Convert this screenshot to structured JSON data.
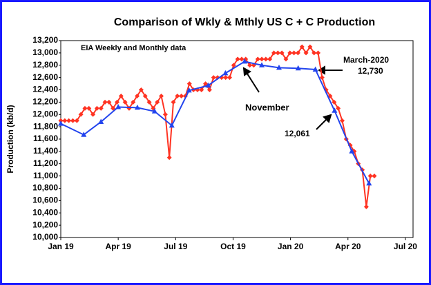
{
  "chart_data": {
    "type": "line",
    "title": "Comparison of Wkly & Mthly  US C + C Production",
    "y_label": "Production (kb/d)",
    "annotations": [
      "EIA Weekly and Monthly data",
      "November",
      "March-2020",
      "12,730",
      "12,061"
    ],
    "xlim": [
      0,
      18.4
    ],
    "xticks": [
      {
        "value": 0,
        "label": "Jan 19"
      },
      {
        "value": 3,
        "label": "Apr 19"
      },
      {
        "value": 6,
        "label": "Jul 19"
      },
      {
        "value": 9,
        "label": "Oct 19"
      },
      {
        "value": 12,
        "label": "Jan 20"
      },
      {
        "value": 15,
        "label": "Apr 20"
      },
      {
        "value": 18,
        "label": "Jul 20"
      }
    ],
    "ylim": [
      10000,
      13200
    ],
    "yticks": [
      {
        "value": 10000,
        "label": "10,000"
      },
      {
        "value": 10200,
        "label": "10,200"
      },
      {
        "value": 10400,
        "label": "10,400"
      },
      {
        "value": 10600,
        "label": "10,600"
      },
      {
        "value": 10800,
        "label": "10,800"
      },
      {
        "value": 11000,
        "label": "11,000"
      },
      {
        "value": 11200,
        "label": "11,200"
      },
      {
        "value": 11400,
        "label": "11,400"
      },
      {
        "value": 11600,
        "label": "11,600"
      },
      {
        "value": 11800,
        "label": "11,800"
      },
      {
        "value": 12000,
        "label": "12,000"
      },
      {
        "value": 12200,
        "label": "12,200"
      },
      {
        "value": 12400,
        "label": "12,400"
      },
      {
        "value": 12600,
        "label": "12,600"
      },
      {
        "value": 12800,
        "label": "12,800"
      },
      {
        "value": 13000,
        "label": "13,000"
      },
      {
        "value": 13200,
        "label": "13,200"
      }
    ],
    "grid": false,
    "series": [
      {
        "marker": "diamond",
        "color": "#ff3322",
        "x": [
          0,
          0.21,
          0.42,
          0.63,
          0.84,
          1.05,
          1.26,
          1.47,
          1.68,
          1.89,
          2.1,
          2.31,
          2.52,
          2.73,
          2.94,
          3.15,
          3.36,
          3.57,
          3.78,
          3.99,
          4.2,
          4.41,
          4.62,
          4.83,
          5.04,
          5.25,
          5.46,
          5.67,
          5.88,
          6.09,
          6.3,
          6.51,
          6.72,
          6.93,
          7.14,
          7.35,
          7.56,
          7.77,
          7.98,
          8.19,
          8.4,
          8.61,
          8.82,
          9.03,
          9.24,
          9.45,
          9.66,
          9.87,
          10.08,
          10.29,
          10.5,
          10.71,
          10.92,
          11.13,
          11.34,
          11.55,
          11.76,
          11.97,
          12.18,
          12.39,
          12.6,
          12.81,
          13.02,
          13.23,
          13.44,
          13.65,
          13.86,
          14.07,
          14.28,
          14.49,
          14.7,
          14.91,
          15.12,
          15.33,
          15.54,
          15.75,
          15.96,
          16.17,
          16.38
        ],
        "values": [
          11900,
          11900,
          11900,
          11900,
          11900,
          12000,
          12100,
          12100,
          12000,
          12100,
          12100,
          12200,
          12200,
          12100,
          12200,
          12300,
          12200,
          12100,
          12200,
          12300,
          12400,
          12300,
          12200,
          12100,
          12200,
          12300,
          12000,
          11300,
          12200,
          12300,
          12300,
          12300,
          12500,
          12400,
          12400,
          12400,
          12500,
          12400,
          12600,
          12600,
          12600,
          12600,
          12600,
          12800,
          12900,
          12900,
          12900,
          12800,
          12800,
          12900,
          12900,
          12900,
          12900,
          13000,
          13000,
          13000,
          12900,
          13000,
          13000,
          13000,
          13100,
          13000,
          13100,
          13000,
          13000,
          12600,
          12400,
          12300,
          12200,
          12100,
          11900,
          11600,
          11500,
          11400,
          11200,
          11100,
          10500,
          11000,
          11000
        ]
      },
      {
        "marker": "triangle",
        "color": "#2244ee",
        "x": [
          0,
          1.2,
          2.1,
          3,
          4,
          4.9,
          5.8,
          6.7,
          7.7,
          8.6,
          9.6,
          10.5,
          11.4,
          12.4,
          13.3,
          14.3,
          15.2,
          16.1
        ],
        "values": [
          11850,
          11670,
          11880,
          12120,
          12110,
          12050,
          11820,
          12390,
          12470,
          12670,
          12860,
          12800,
          12760,
          12750,
          12730,
          12061,
          11400,
          10880
        ]
      }
    ]
  }
}
